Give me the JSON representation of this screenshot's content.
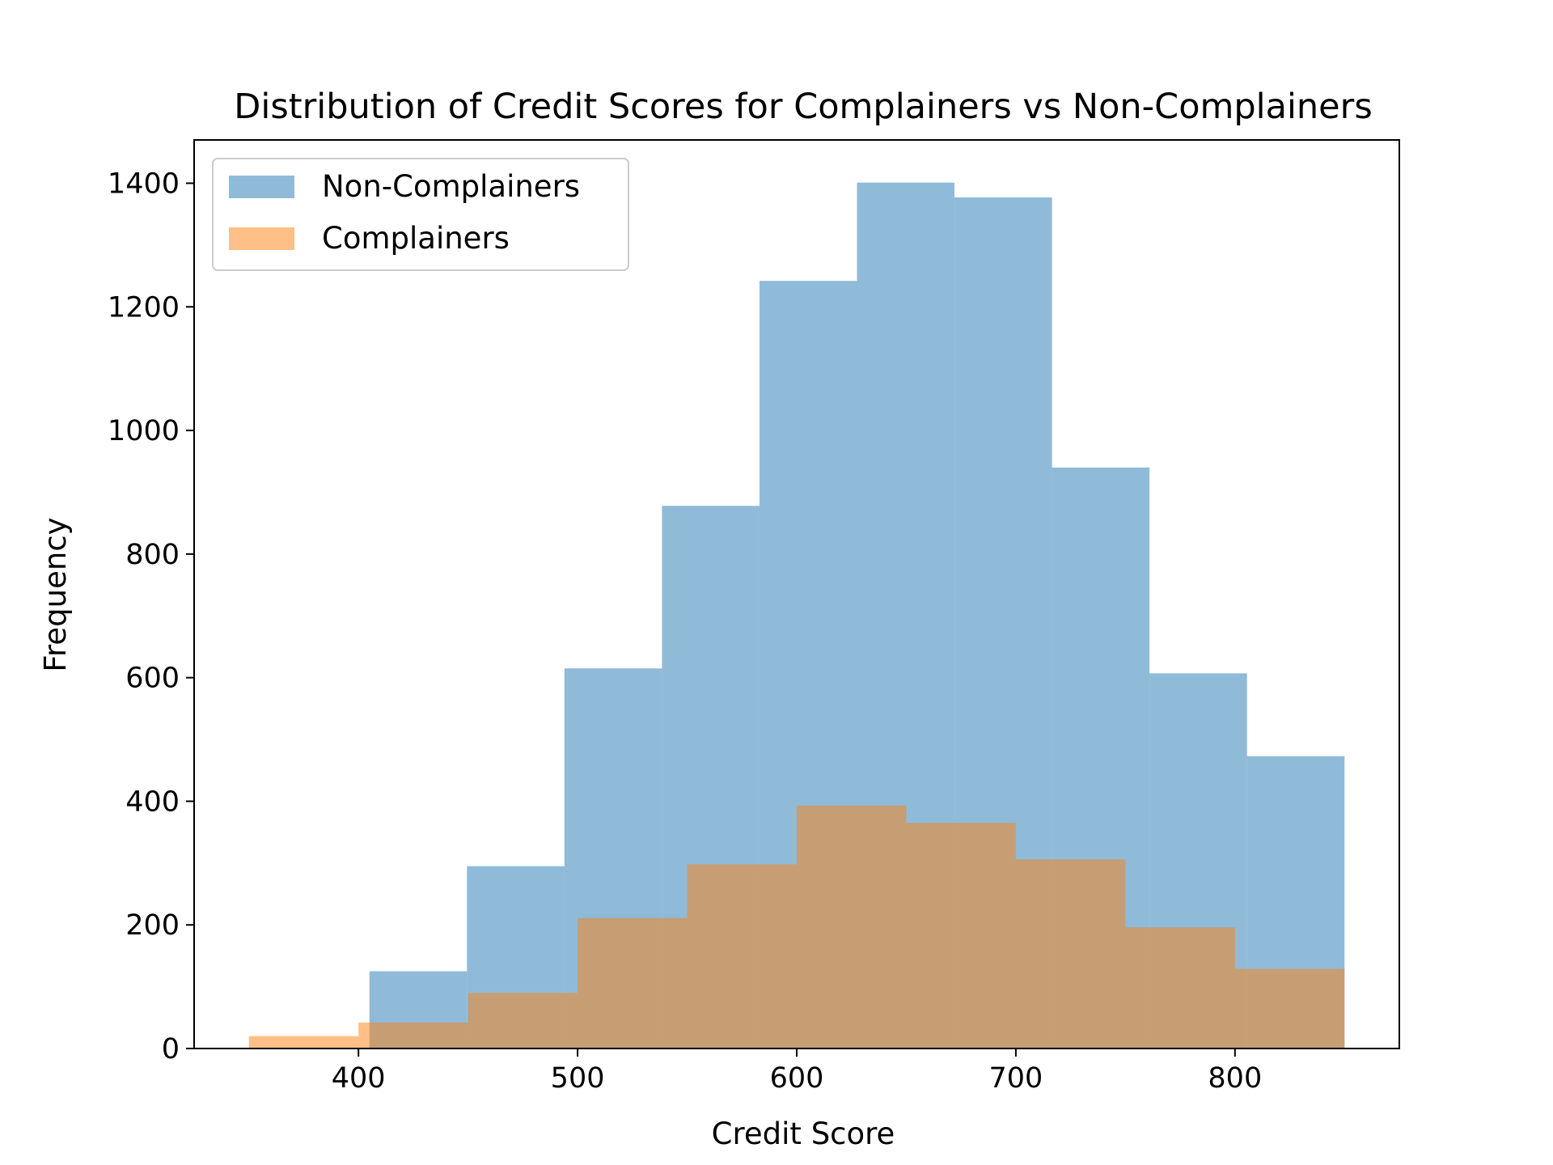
{
  "chart_data": {
    "type": "histogram",
    "title": "Distribution of Credit Scores for Complainers vs Non-Complainers",
    "xlabel": "Credit Score",
    "ylabel": "Frequency",
    "xlim": [
      325,
      875
    ],
    "ylim": [
      0,
      1470
    ],
    "x_ticks": [
      400,
      500,
      600,
      700,
      800
    ],
    "y_ticks": [
      0,
      200,
      400,
      600,
      800,
      1000,
      1200,
      1400
    ],
    "grid": false,
    "legend_position": "upper-left",
    "opacity": 0.5,
    "series": [
      {
        "name": "Non-Complainers",
        "color": "#1f77b4",
        "bin_edges": [
          405,
          449.5,
          494,
          538.5,
          583,
          627.5,
          672,
          716.5,
          761,
          805.5,
          850
        ],
        "counts": [
          125,
          295,
          615,
          878,
          1242,
          1401,
          1377,
          940,
          607,
          473
        ]
      },
      {
        "name": "Complainers",
        "color": "#ff7f0e",
        "bin_edges": [
          350,
          400,
          450,
          500,
          550,
          600,
          650,
          700,
          750,
          800,
          850
        ],
        "counts": [
          20,
          42,
          90,
          211,
          298,
          393,
          365,
          306,
          196,
          129
        ]
      }
    ]
  }
}
